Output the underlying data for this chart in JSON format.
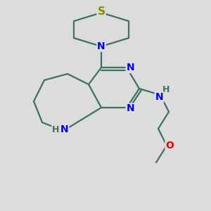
{
  "bg_color": "#dcdcdc",
  "bond_color": "#3d7065",
  "bond_width": 1.6,
  "n_color": "#0000ee",
  "s_color": "#8b8b00",
  "o_color": "#ee0000",
  "h_color": "#3d7065",
  "font_size_atom": 10,
  "fig_size": [
    3.0,
    3.0
  ],
  "dpi": 100,
  "xlim": [
    0,
    10
  ],
  "ylim": [
    0,
    10
  ]
}
